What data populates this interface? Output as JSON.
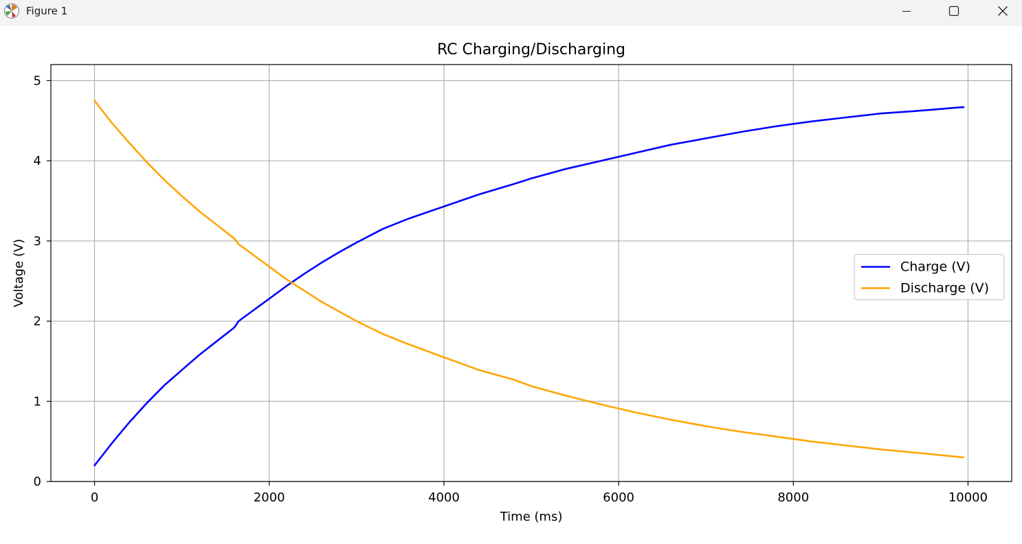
{
  "window": {
    "title": "Figure 1",
    "icon": "matplotlib-icon",
    "controls": [
      "minimize-icon",
      "maximize-icon",
      "close-icon"
    ]
  },
  "chart_data": {
    "type": "line",
    "title": "RC Charging/Discharging",
    "xlabel": "Time (ms)",
    "ylabel": "Voltage (V)",
    "xlim": [
      -500,
      10500
    ],
    "ylim": [
      0,
      5.2
    ],
    "xticks": [
      0,
      2000,
      4000,
      6000,
      8000,
      10000
    ],
    "yticks": [
      0,
      1,
      2,
      3,
      4,
      5
    ],
    "grid": true,
    "legend_position": "center-right",
    "series": [
      {
        "name": "Charge (V)",
        "color": "#0000ff",
        "x": [
          0,
          200,
          400,
          600,
          800,
          1000,
          1200,
          1400,
          1600,
          1650,
          1800,
          2000,
          2200,
          2400,
          2600,
          2800,
          3000,
          3300,
          3600,
          4000,
          4400,
          4800,
          5000,
          5400,
          5800,
          6200,
          6600,
          7000,
          7400,
          7800,
          8200,
          8600,
          9000,
          9400,
          9950
        ],
        "y": [
          0.2,
          0.48,
          0.74,
          0.98,
          1.2,
          1.39,
          1.58,
          1.75,
          1.92,
          2.0,
          2.12,
          2.28,
          2.44,
          2.59,
          2.73,
          2.86,
          2.98,
          3.15,
          3.28,
          3.43,
          3.58,
          3.71,
          3.78,
          3.9,
          4.0,
          4.1,
          4.2,
          4.28,
          4.36,
          4.43,
          4.49,
          4.54,
          4.59,
          4.62,
          4.67
        ]
      },
      {
        "name": "Discharge (V)",
        "color": "#ffa500",
        "x": [
          0,
          200,
          400,
          600,
          800,
          1000,
          1200,
          1400,
          1600,
          1650,
          1800,
          2000,
          2200,
          2400,
          2600,
          2800,
          3000,
          3300,
          3600,
          4000,
          4400,
          4800,
          5000,
          5400,
          5800,
          6200,
          6600,
          7000,
          7400,
          7800,
          8200,
          8600,
          9000,
          9400,
          9950
        ],
        "y": [
          4.75,
          4.47,
          4.22,
          3.98,
          3.76,
          3.56,
          3.37,
          3.2,
          3.03,
          2.96,
          2.84,
          2.68,
          2.52,
          2.38,
          2.24,
          2.12,
          2.0,
          1.84,
          1.71,
          1.55,
          1.39,
          1.27,
          1.19,
          1.07,
          0.96,
          0.86,
          0.77,
          0.69,
          0.62,
          0.56,
          0.5,
          0.45,
          0.4,
          0.36,
          0.3
        ]
      }
    ]
  }
}
